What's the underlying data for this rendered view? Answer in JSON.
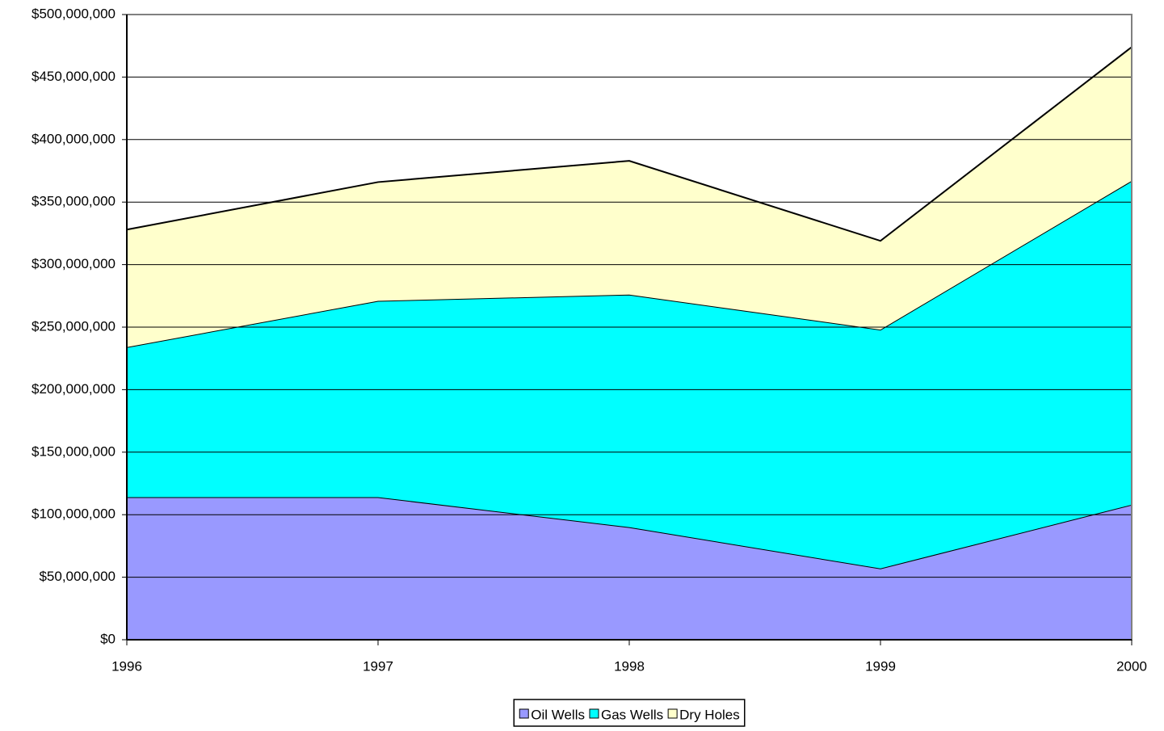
{
  "chart_data": {
    "type": "stacked-area",
    "categories": [
      "1996",
      "1997",
      "1998",
      "1999",
      "2000"
    ],
    "series": [
      {
        "name": "Oil Wells",
        "color": "#9999ff",
        "values": [
          114000000,
          114000000,
          90000000,
          57000000,
          108000000
        ]
      },
      {
        "name": "Gas Wells",
        "color": "#00ffff",
        "values": [
          120000000,
          157000000,
          186000000,
          191000000,
          259000000
        ]
      },
      {
        "name": "Dry Holes",
        "color": "#ffffcc",
        "values": [
          94000000,
          95000000,
          107000000,
          71000000,
          107000000
        ]
      }
    ],
    "ylim": [
      0,
      500000000
    ],
    "yticks": [
      {
        "value": 0,
        "label": "$0"
      },
      {
        "value": 50000000,
        "label": "$50,000,000"
      },
      {
        "value": 100000000,
        "label": "$100,000,000"
      },
      {
        "value": 150000000,
        "label": "$150,000,000"
      },
      {
        "value": 200000000,
        "label": "$200,000,000"
      },
      {
        "value": 250000000,
        "label": "$250,000,000"
      },
      {
        "value": 300000000,
        "label": "$300,000,000"
      },
      {
        "value": 350000000,
        "label": "$350,000,000"
      },
      {
        "value": 400000000,
        "label": "$400,000,000"
      },
      {
        "value": 450000000,
        "label": "$450,000,000"
      },
      {
        "value": 500000000,
        "label": "$500,000,000"
      }
    ],
    "grid": true,
    "legend": "bottom"
  }
}
